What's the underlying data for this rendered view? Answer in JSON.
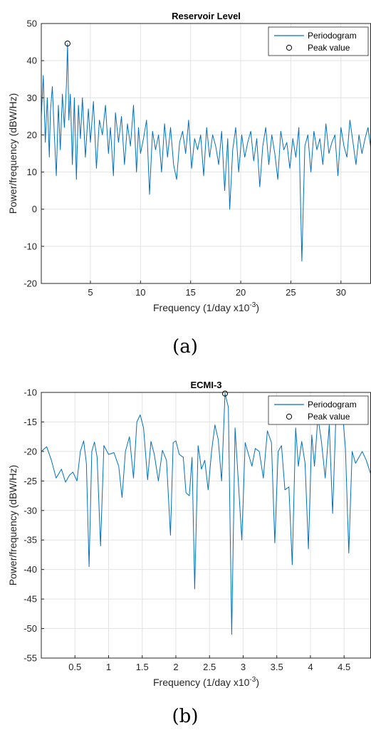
{
  "colors": {
    "line": "#0072BD",
    "marker": "#000000",
    "grid": "#e3e3e3",
    "axis": "#262626",
    "text": "#262626"
  },
  "chart_data": [
    {
      "type": "line",
      "title": "Reservoir Level",
      "xlabel": "Frequency (1/day x10",
      "xlabel_sup": "-3",
      "xlabel_end": ")",
      "ylabel": "Power/frequency (dBW/Hz)",
      "xlim": [
        0.1,
        33
      ],
      "ylim": [
        -20,
        50
      ],
      "xticks": [
        5,
        10,
        15,
        20,
        25,
        30
      ],
      "xtick_labels": [
        "5",
        "10",
        "15",
        "20",
        "25",
        "30"
      ],
      "yticks": [
        -20,
        -10,
        0,
        10,
        20,
        30,
        40,
        50
      ],
      "ytick_labels": [
        "-20",
        "-10",
        "0",
        "10",
        "20",
        "30",
        "40",
        "50"
      ],
      "grid": true,
      "legend_position": "top-right",
      "legend": [
        "Periodogram",
        "Peak value"
      ],
      "caption": "(a)",
      "peak": {
        "x": 2.72,
        "y": 44.6
      },
      "series": [
        {
          "name": "Periodogram",
          "x": [
            0.1,
            0.3,
            0.5,
            0.7,
            0.9,
            1.0,
            1.2,
            1.4,
            1.6,
            1.8,
            2.0,
            2.2,
            2.4,
            2.6,
            2.72,
            2.85,
            3.0,
            3.2,
            3.4,
            3.6,
            3.8,
            4.0,
            4.2,
            4.5,
            4.8,
            5.0,
            5.3,
            5.6,
            5.9,
            6.2,
            6.5,
            6.8,
            7.0,
            7.3,
            7.5,
            7.8,
            8.1,
            8.4,
            8.7,
            9.0,
            9.3,
            9.6,
            9.8,
            10.0,
            10.3,
            10.6,
            10.9,
            11.2,
            11.5,
            11.8,
            12.1,
            12.4,
            12.7,
            13.0,
            13.3,
            13.6,
            13.9,
            14.2,
            14.5,
            14.8,
            15.1,
            15.4,
            15.7,
            16.0,
            16.3,
            16.6,
            16.9,
            17.2,
            17.5,
            17.8,
            18.1,
            18.4,
            18.7,
            18.9,
            19.2,
            19.5,
            19.8,
            20.1,
            20.4,
            20.7,
            21.0,
            21.3,
            21.6,
            21.9,
            22.2,
            22.5,
            22.8,
            23.1,
            23.4,
            23.7,
            24.0,
            24.3,
            24.6,
            24.9,
            25.2,
            25.5,
            25.8,
            26.1,
            26.4,
            26.7,
            27.0,
            27.3,
            27.6,
            27.9,
            28.2,
            28.5,
            28.8,
            29.1,
            29.4,
            29.7,
            30.0,
            30.3,
            30.6,
            30.9,
            31.2,
            31.5,
            31.8,
            32.1,
            32.4,
            32.7,
            33.0
          ],
          "y": [
            25,
            36,
            18,
            30,
            14,
            26,
            33,
            20,
            9,
            28,
            16,
            31,
            22,
            33,
            44.6,
            24,
            31,
            12,
            30,
            8,
            28,
            19,
            30,
            14,
            27,
            18,
            29,
            11,
            24,
            20,
            28,
            15,
            22,
            9,
            26,
            18,
            25,
            12,
            23,
            17,
            28,
            10,
            22,
            15,
            19,
            24,
            4,
            21,
            16,
            20,
            10,
            23,
            14,
            22,
            12,
            8,
            18,
            21,
            15,
            24,
            11,
            19,
            16,
            20,
            9,
            22,
            14,
            20,
            17,
            12,
            21,
            5,
            19,
            0,
            16,
            22,
            10,
            20,
            14,
            18,
            21,
            13,
            19,
            6,
            17,
            22,
            12,
            20,
            15,
            8,
            21,
            16,
            18,
            11,
            19,
            14,
            22,
            -14,
            17,
            20,
            10,
            21,
            16,
            19,
            12,
            23,
            15,
            18,
            20,
            9,
            22,
            17,
            14,
            24,
            18,
            12,
            20,
            15,
            19,
            22,
            16
          ]
        }
      ]
    },
    {
      "type": "line",
      "title": "ECMI-3",
      "xlabel": "Frequency (1/day x10",
      "xlabel_sup": "-3",
      "xlabel_end": ")",
      "ylabel": "Power/frequency (dBW/Hz)",
      "xlim": [
        0.0,
        4.9
      ],
      "ylim": [
        -55,
        -10
      ],
      "xticks": [
        0.5,
        1,
        1.5,
        2,
        2.5,
        3,
        3.5,
        4,
        4.5
      ],
      "xtick_labels": [
        "0.5",
        "1",
        "1.5",
        "2",
        "2.5",
        "3",
        "3.5",
        "4",
        "4.5"
      ],
      "yticks": [
        -55,
        -50,
        -45,
        -40,
        -35,
        -30,
        -25,
        -20,
        -15,
        -10
      ],
      "ytick_labels": [
        "-55",
        "-50",
        "-45",
        "-40",
        "-35",
        "-30",
        "-25",
        "-20",
        "-15",
        "-10"
      ],
      "grid": true,
      "legend_position": "top-right",
      "legend": [
        "Periodogram",
        "Peak value"
      ],
      "caption": "(b)",
      "peak": {
        "x": 2.73,
        "y": -10.2
      },
      "series": [
        {
          "name": "Periodogram",
          "x": [
            0.0,
            0.08,
            0.15,
            0.22,
            0.3,
            0.36,
            0.42,
            0.47,
            0.53,
            0.58,
            0.63,
            0.67,
            0.71,
            0.75,
            0.79,
            0.83,
            0.88,
            0.93,
            1.0,
            1.08,
            1.15,
            1.2,
            1.25,
            1.31,
            1.37,
            1.42,
            1.47,
            1.52,
            1.58,
            1.63,
            1.68,
            1.74,
            1.8,
            1.86,
            1.92,
            1.96,
            2.0,
            2.05,
            2.11,
            2.15,
            2.2,
            2.24,
            2.28,
            2.33,
            2.38,
            2.43,
            2.48,
            2.53,
            2.58,
            2.63,
            2.68,
            2.73,
            2.78,
            2.83,
            2.88,
            2.93,
            2.98,
            3.03,
            3.08,
            3.13,
            3.18,
            3.24,
            3.3,
            3.36,
            3.42,
            3.47,
            3.52,
            3.57,
            3.62,
            3.68,
            3.73,
            3.78,
            3.82,
            3.87,
            3.92,
            3.97,
            4.02,
            4.06,
            4.11,
            4.16,
            4.22,
            4.28,
            4.33,
            4.38,
            4.43,
            4.47,
            4.52,
            4.57,
            4.62,
            4.67,
            4.72,
            4.77,
            4.83,
            4.9
          ],
          "y": [
            -20,
            -19.2,
            -21.5,
            -24.5,
            -23,
            -25.2,
            -24,
            -23.5,
            -25,
            -20,
            -18.2,
            -22,
            -39.5,
            -20,
            -18.4,
            -21,
            -36,
            -19,
            -20.5,
            -20.2,
            -22.5,
            -27.8,
            -20,
            -17.5,
            -24.5,
            -15,
            -13.8,
            -16,
            -24.8,
            -18.3,
            -20.5,
            -25,
            -19.8,
            -21.5,
            -34.2,
            -18.5,
            -18.2,
            -20.5,
            -21,
            -27,
            -27.5,
            -21,
            -43.3,
            -19,
            -23,
            -21.5,
            -26.5,
            -20,
            -15.5,
            -18,
            -25,
            -10.2,
            -12.5,
            -51,
            -16,
            -25.5,
            -35,
            -18.5,
            -20.5,
            -22.5,
            -19.5,
            -20,
            -24.5,
            -16.5,
            -18.5,
            -35.5,
            -20,
            -19,
            -26.5,
            -26,
            -39.2,
            -16,
            -22.5,
            -18.3,
            -22,
            -36.5,
            -17.2,
            -22.5,
            -14.2,
            -18,
            -24.5,
            -15.5,
            -30.5,
            -13.5,
            -11.5,
            -12.5,
            -19.5,
            -37.2,
            -20,
            -22,
            -21,
            -20,
            -21.5,
            -24
          ]
        }
      ]
    }
  ]
}
